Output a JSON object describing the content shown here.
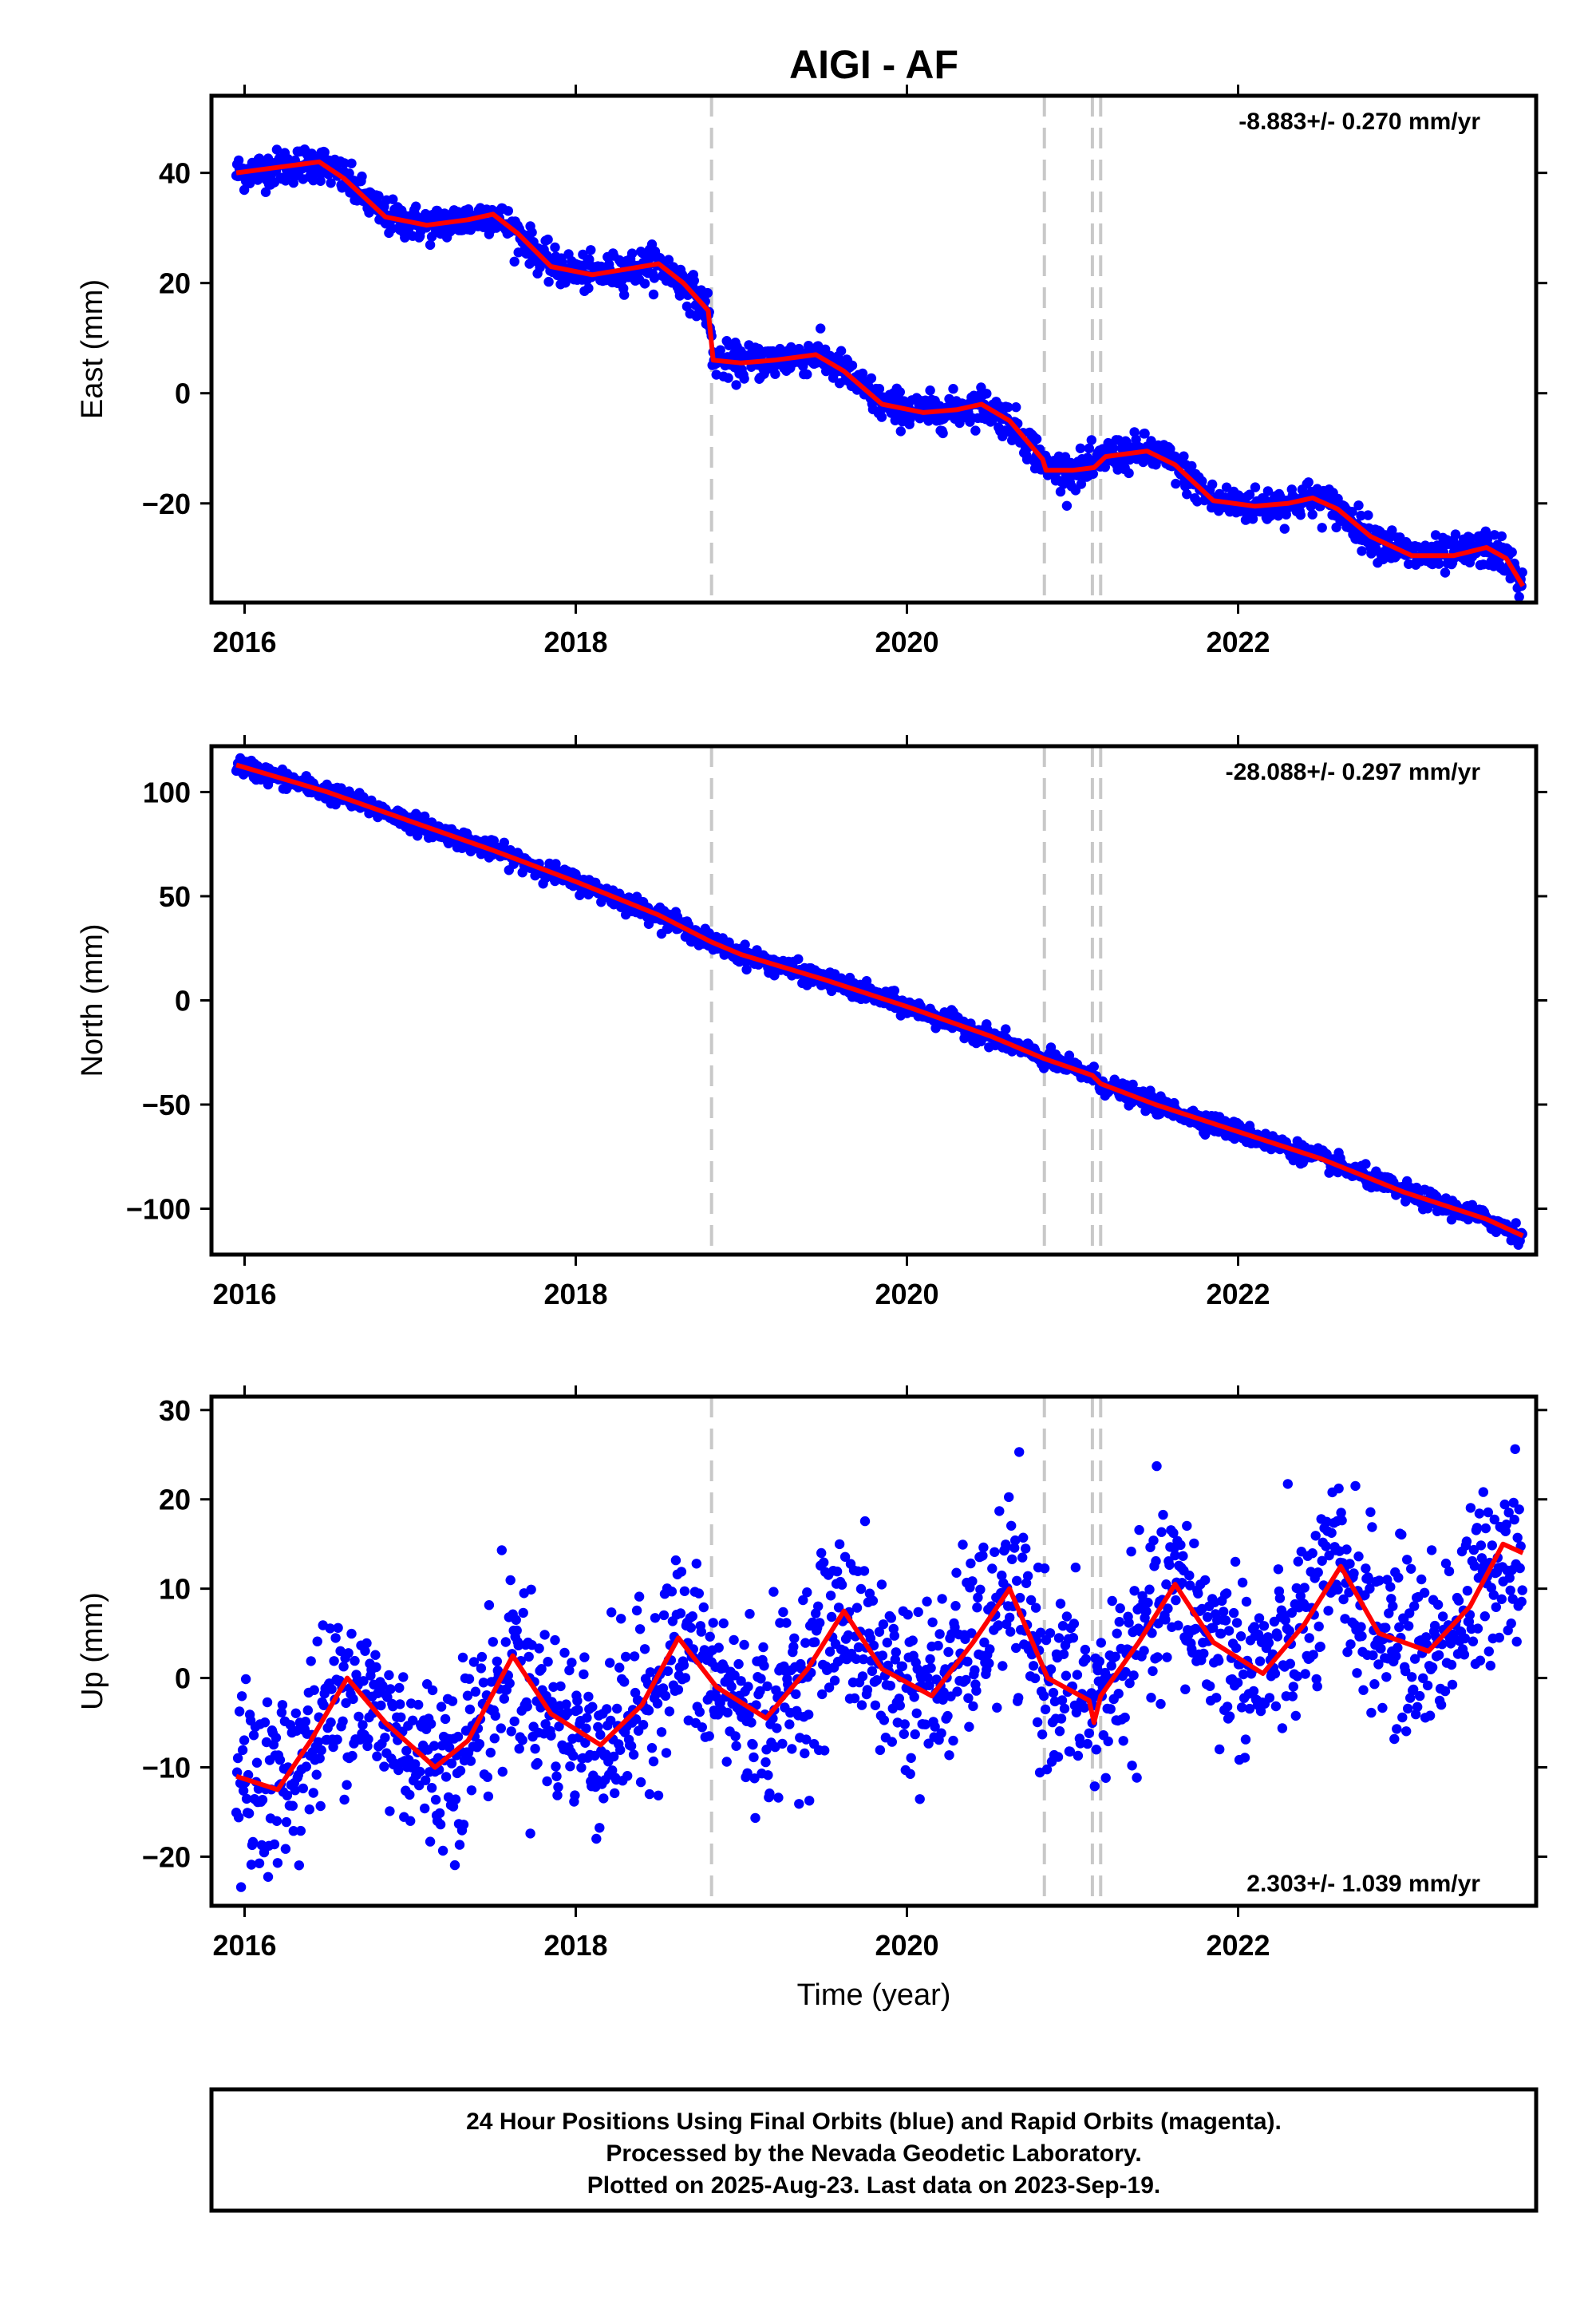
{
  "chart_data": {
    "type": "scatter",
    "title": "AIGI - AF",
    "xlabel": "Time (year)",
    "xlim": [
      2015.8,
      2023.8
    ],
    "x_ticks": [
      "2016",
      "2018",
      "2020",
      "2022"
    ],
    "x_tick_values": [
      2016,
      2018,
      2020,
      2022
    ],
    "vertical_dashed_lines": [
      2018.82,
      2020.83,
      2021.12,
      2021.17
    ],
    "series_colors": {
      "points": "#0000ff",
      "fit": "#ff0000",
      "dashed": "#c8c8c8"
    },
    "panels": [
      {
        "id": "east",
        "ylabel": "East (mm)",
        "rate": "-8.883+/- 0.270 mm/yr",
        "rate_position": "top-right",
        "ylim": [
          -38,
          54
        ],
        "y_ticks": [
          "40",
          "20",
          "0",
          "−20"
        ],
        "y_tick_values": [
          40,
          20,
          0,
          -20
        ],
        "fit_curve": [
          [
            2015.95,
            40
          ],
          [
            2016.2,
            41
          ],
          [
            2016.45,
            42
          ],
          [
            2016.6,
            39
          ],
          [
            2016.85,
            32
          ],
          [
            2017.1,
            30.5
          ],
          [
            2017.35,
            31.5
          ],
          [
            2017.5,
            32.5
          ],
          [
            2017.65,
            29
          ],
          [
            2017.85,
            23
          ],
          [
            2018.1,
            21.5
          ],
          [
            2018.3,
            22.5
          ],
          [
            2018.5,
            23.5
          ],
          [
            2018.65,
            20
          ],
          [
            2018.8,
            15
          ],
          [
            2018.83,
            6
          ],
          [
            2019.0,
            5.5
          ],
          [
            2019.2,
            6
          ],
          [
            2019.45,
            7
          ],
          [
            2019.62,
            4
          ],
          [
            2019.85,
            -2
          ],
          [
            2020.1,
            -3.5
          ],
          [
            2020.3,
            -3
          ],
          [
            2020.45,
            -2
          ],
          [
            2020.62,
            -5
          ],
          [
            2020.82,
            -12
          ],
          [
            2020.84,
            -14
          ],
          [
            2021.0,
            -14
          ],
          [
            2021.13,
            -13.5
          ],
          [
            2021.2,
            -11.5
          ],
          [
            2021.45,
            -10.5
          ],
          [
            2021.62,
            -13
          ],
          [
            2021.85,
            -19.5
          ],
          [
            2022.1,
            -20.5
          ],
          [
            2022.3,
            -20
          ],
          [
            2022.45,
            -19
          ],
          [
            2022.6,
            -21
          ],
          [
            2022.8,
            -26
          ],
          [
            2023.05,
            -29.5
          ],
          [
            2023.3,
            -29.5
          ],
          [
            2023.5,
            -28
          ],
          [
            2023.62,
            -30
          ],
          [
            2023.72,
            -35
          ]
        ],
        "scatter_noise_mm": 1.6
      },
      {
        "id": "north",
        "ylabel": "North (mm)",
        "rate": "-28.088+/- 0.297 mm/yr",
        "rate_position": "top-right",
        "ylim": [
          -122,
          122
        ],
        "y_ticks": [
          "100",
          "50",
          "0",
          "−50",
          "−100"
        ],
        "y_tick_values": [
          100,
          50,
          0,
          -50,
          -100
        ],
        "fit_curve": [
          [
            2015.95,
            113
          ],
          [
            2016.5,
            100
          ],
          [
            2017.0,
            86
          ],
          [
            2017.5,
            72
          ],
          [
            2018.0,
            57
          ],
          [
            2018.5,
            41
          ],
          [
            2018.82,
            28
          ],
          [
            2019.0,
            22
          ],
          [
            2019.5,
            10
          ],
          [
            2020.0,
            -3
          ],
          [
            2020.5,
            -17
          ],
          [
            2020.83,
            -28
          ],
          [
            2021.12,
            -36
          ],
          [
            2021.17,
            -40
          ],
          [
            2021.5,
            -50
          ],
          [
            2022.0,
            -63
          ],
          [
            2022.5,
            -76
          ],
          [
            2023.0,
            -92
          ],
          [
            2023.5,
            -105
          ],
          [
            2023.72,
            -113
          ]
        ],
        "scatter_noise_mm": 2.2
      },
      {
        "id": "up",
        "ylabel": "Up (mm)",
        "rate": "2.303+/- 1.039 mm/yr",
        "rate_position": "bottom-right",
        "ylim": [
          -25.5,
          31.5
        ],
        "y_ticks": [
          "30",
          "20",
          "10",
          "0",
          "−10",
          "−20"
        ],
        "y_tick_values": [
          30,
          20,
          10,
          0,
          -10,
          -20
        ],
        "fit_curve": [
          [
            2015.95,
            -11
          ],
          [
            2016.2,
            -12.5
          ],
          [
            2016.4,
            -7
          ],
          [
            2016.62,
            0
          ],
          [
            2016.85,
            -5
          ],
          [
            2017.15,
            -10
          ],
          [
            2017.35,
            -7
          ],
          [
            2017.62,
            2.5
          ],
          [
            2017.85,
            -4
          ],
          [
            2018.15,
            -7.5
          ],
          [
            2018.4,
            -3
          ],
          [
            2018.62,
            4.5
          ],
          [
            2018.85,
            -1
          ],
          [
            2019.15,
            -4.5
          ],
          [
            2019.4,
            1
          ],
          [
            2019.62,
            7.5
          ],
          [
            2019.85,
            1
          ],
          [
            2020.15,
            -2
          ],
          [
            2020.4,
            4
          ],
          [
            2020.62,
            10
          ],
          [
            2020.85,
            0
          ],
          [
            2021.1,
            -2.5
          ],
          [
            2021.13,
            -5
          ],
          [
            2021.17,
            -2
          ],
          [
            2021.4,
            4
          ],
          [
            2021.62,
            10.5
          ],
          [
            2021.85,
            4
          ],
          [
            2022.15,
            0.5
          ],
          [
            2022.4,
            6
          ],
          [
            2022.62,
            12.5
          ],
          [
            2022.85,
            5
          ],
          [
            2023.15,
            3
          ],
          [
            2023.4,
            8
          ],
          [
            2023.6,
            15
          ],
          [
            2023.72,
            14
          ]
        ],
        "scatter_noise_mm": 5.0
      }
    ],
    "footer_lines": [
      "24 Hour Positions Using Final Orbits (blue) and Rapid Orbits (magenta).",
      "Processed by the Nevada Geodetic Laboratory.",
      "Plotted on 2025-Aug-23. Last data on 2023-Sep-19."
    ]
  }
}
